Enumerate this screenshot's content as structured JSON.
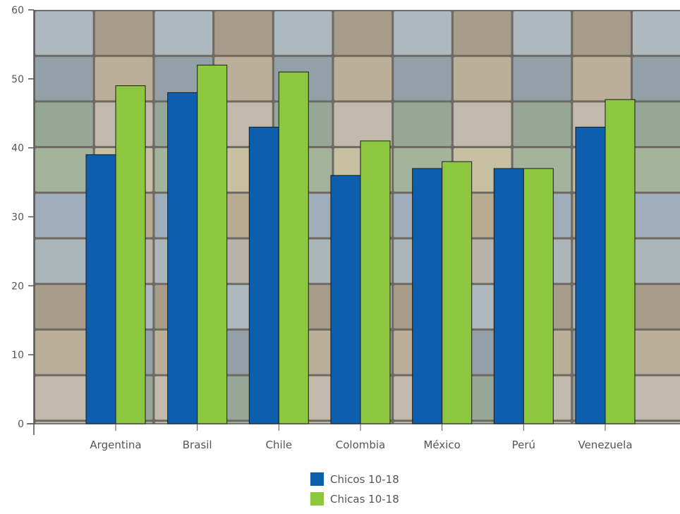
{
  "chart_data": {
    "type": "bar",
    "categories": [
      "Argentina",
      "Brasil",
      "Chile",
      "Colombia",
      "México",
      "Perú",
      "Venezuela"
    ],
    "series": [
      {
        "name": "Chicos 10-18",
        "values": [
          39,
          48,
          43,
          36,
          37,
          37,
          43
        ],
        "color": "#0d5fae"
      },
      {
        "name": "Chicas 10-18",
        "values": [
          49,
          52,
          51,
          41,
          38,
          37,
          47
        ],
        "color": "#8dc63f"
      }
    ],
    "ylim": [
      0,
      60
    ],
    "yticks": [
      0,
      10,
      20,
      30,
      40,
      50,
      60
    ],
    "grid": false,
    "legend_position": "bottom-center",
    "background": "photo-collage"
  }
}
